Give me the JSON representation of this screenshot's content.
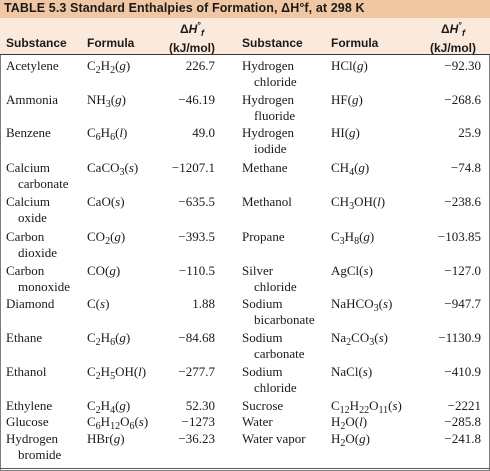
{
  "table": {
    "title": "TABLE 5.3 Standard Enthalpies of Formation, ΔH°f, at 298 K",
    "headers": {
      "substance": "Substance",
      "formula": "Formula",
      "dh_symbol": "ΔH°f",
      "dh_unit": "(kJ/mol)"
    },
    "left_rows": [
      {
        "substance": "Acetylene",
        "substance2": "",
        "formula": "C2H2(g)",
        "value": "226.7"
      },
      {
        "substance": "Ammonia",
        "substance2": "",
        "formula": "NH3(g)",
        "value": "−46.19"
      },
      {
        "substance": "Benzene",
        "substance2": "",
        "formula": "C6H6(l)",
        "value": "49.0"
      },
      {
        "substance": "Calcium",
        "substance2": "carbonate",
        "formula": "CaCO3(s)",
        "value": "−1207.1"
      },
      {
        "substance": "Calcium",
        "substance2": "oxide",
        "formula": "CaO(s)",
        "value": "−635.5"
      },
      {
        "substance": "Carbon",
        "substance2": "dioxide",
        "formula": "CO2(g)",
        "value": "−393.5"
      },
      {
        "substance": "Carbon",
        "substance2": "monoxide",
        "formula": "CO(g)",
        "value": "−110.5"
      },
      {
        "substance": "Diamond",
        "substance2": "",
        "formula": "C(s)",
        "value": "1.88"
      },
      {
        "substance": "Ethane",
        "substance2": "",
        "formula": "C2H6(g)",
        "value": "−84.68"
      },
      {
        "substance": "Ethanol",
        "substance2": "",
        "formula": "C2H5OH(l)",
        "value": "−277.7"
      },
      {
        "substance": "Ethylene",
        "substance2": "",
        "formula": "C2H4(g)",
        "value": "52.30"
      },
      {
        "substance": "Glucose",
        "substance2": "",
        "formula": "C6H12O6(s)",
        "value": "−1273"
      },
      {
        "substance": "Hydrogen",
        "substance2": "bromide",
        "formula": "HBr(g)",
        "value": "−36.23"
      }
    ],
    "right_rows": [
      {
        "substance": "Hydrogen",
        "substance2": "chloride",
        "formula": "HCl(g)",
        "value": "−92.30"
      },
      {
        "substance": "Hydrogen",
        "substance2": "fluoride",
        "formula": "HF(g)",
        "value": "−268.6"
      },
      {
        "substance": "Hydrogen",
        "substance2": "iodide",
        "formula": "HI(g)",
        "value": "25.9"
      },
      {
        "substance": "Methane",
        "substance2": "",
        "formula": "CH4(g)",
        "value": "−74.8"
      },
      {
        "substance": "Methanol",
        "substance2": "",
        "formula": "CH3OH(l)",
        "value": "−238.6"
      },
      {
        "substance": "Propane",
        "substance2": "",
        "formula": "C3H8(g)",
        "value": "−103.85"
      },
      {
        "substance": "Silver",
        "substance2": "chloride",
        "formula": "AgCl(s)",
        "value": "−127.0"
      },
      {
        "substance": "Sodium",
        "substance2": "bicarbonate",
        "formula": "NaHCO3(s)",
        "value": "−947.7"
      },
      {
        "substance": "Sodium",
        "substance2": "carbonate",
        "formula": "Na2CO3(s)",
        "value": "−1130.9"
      },
      {
        "substance": "Sodium",
        "substance2": "chloride",
        "formula": "NaCl(s)",
        "value": "−410.9"
      },
      {
        "substance": "Sucrose",
        "substance2": "",
        "formula": "C12H22O11(s)",
        "value": "−2221"
      },
      {
        "substance": "Water",
        "substance2": "",
        "formula": "H2O(l)",
        "value": "−285.8"
      },
      {
        "substance": "Water vapor",
        "substance2": "",
        "formula": "H2O(g)",
        "value": "−241.8"
      }
    ]
  }
}
